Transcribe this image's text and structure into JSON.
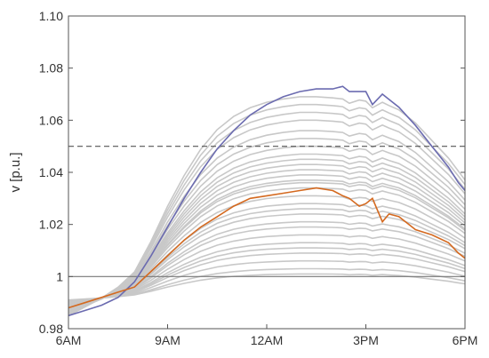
{
  "chart_data": {
    "type": "line",
    "title": "",
    "xlabel": "",
    "ylabel": "v  [p.u.]",
    "x_ticks": [
      "6AM",
      "9AM",
      "12AM",
      "3PM",
      "6PM"
    ],
    "x_tick_hours": [
      6,
      9,
      12,
      15,
      18
    ],
    "xlim": [
      6,
      18
    ],
    "ylim": [
      0.98,
      1.1
    ],
    "y_ticks": [
      "0.98",
      "1",
      "1.02",
      "1.04",
      "1.06",
      "1.08",
      "1.10"
    ],
    "y_tick_values": [
      0.98,
      1.0,
      1.02,
      1.04,
      1.06,
      1.08,
      1.1
    ],
    "grid": false,
    "legend": "none",
    "reference_lines": [
      {
        "y": 1.05,
        "style": "dashed",
        "color": "#555555"
      },
      {
        "y": 1.0,
        "style": "solid",
        "color": "#777777"
      }
    ],
    "highlighted_series": [
      {
        "color": "#6b6bb0",
        "x": [
          6,
          6.5,
          7,
          7.5,
          8,
          8.5,
          9,
          9.5,
          10,
          10.5,
          11,
          11.5,
          12,
          12.5,
          13,
          13.5,
          14,
          14.3,
          14.5,
          14.8,
          15,
          15.2,
          15.5,
          15.7,
          16,
          16.5,
          17,
          17.5,
          17.8,
          18
        ],
        "y": [
          0.985,
          0.987,
          0.989,
          0.992,
          0.998,
          1.008,
          1.019,
          1.03,
          1.04,
          1.049,
          1.056,
          1.062,
          1.066,
          1.069,
          1.071,
          1.072,
          1.072,
          1.073,
          1.071,
          1.071,
          1.071,
          1.066,
          1.07,
          1.068,
          1.065,
          1.058,
          1.05,
          1.042,
          1.036,
          1.033
        ]
      },
      {
        "color": "#d4691f",
        "x": [
          6,
          6.5,
          7,
          7.5,
          8,
          8.5,
          9,
          9.5,
          10,
          10.5,
          11,
          11.5,
          12,
          12.5,
          13,
          13.5,
          14,
          14.3,
          14.5,
          14.8,
          15,
          15.2,
          15.5,
          15.7,
          16,
          16.5,
          17,
          17.5,
          17.8,
          18
        ],
        "y": [
          0.988,
          0.99,
          0.992,
          0.994,
          0.996,
          1.002,
          1.008,
          1.014,
          1.019,
          1.023,
          1.027,
          1.03,
          1.031,
          1.032,
          1.033,
          1.034,
          1.033,
          1.031,
          1.03,
          1.027,
          1.028,
          1.03,
          1.021,
          1.024,
          1.023,
          1.018,
          1.016,
          1.013,
          1.009,
          1.007
        ]
      }
    ],
    "background_series": {
      "color": "#c8c8c8",
      "x": [
        6,
        6.5,
        7,
        7.5,
        8,
        8.5,
        9,
        9.5,
        10,
        10.5,
        11,
        11.5,
        12,
        12.5,
        13,
        13.5,
        14,
        14.3,
        14.5,
        14.8,
        15,
        15.2,
        15.5,
        15.7,
        16,
        16.5,
        17,
        17.5,
        17.8,
        18
      ],
      "peak_values": [
        1.069,
        1.066,
        1.063,
        1.06,
        1.056,
        1.053,
        1.05,
        1.047,
        1.045,
        1.043,
        1.041,
        1.039,
        1.037,
        1.036,
        1.034,
        1.031,
        1.028,
        1.026,
        1.024,
        1.021,
        1.019,
        1.016,
        1.013,
        1.011,
        1.009,
        1.006,
        1.003,
        1.001
      ],
      "profile": [
        0.0,
        0.04,
        0.08,
        0.13,
        0.2,
        0.34,
        0.5,
        0.64,
        0.76,
        0.85,
        0.91,
        0.95,
        0.975,
        0.99,
        1.0,
        1.0,
        0.995,
        0.99,
        0.97,
        0.985,
        0.98,
        0.95,
        0.975,
        0.96,
        0.94,
        0.88,
        0.8,
        0.72,
        0.66,
        0.62
      ]
    }
  }
}
